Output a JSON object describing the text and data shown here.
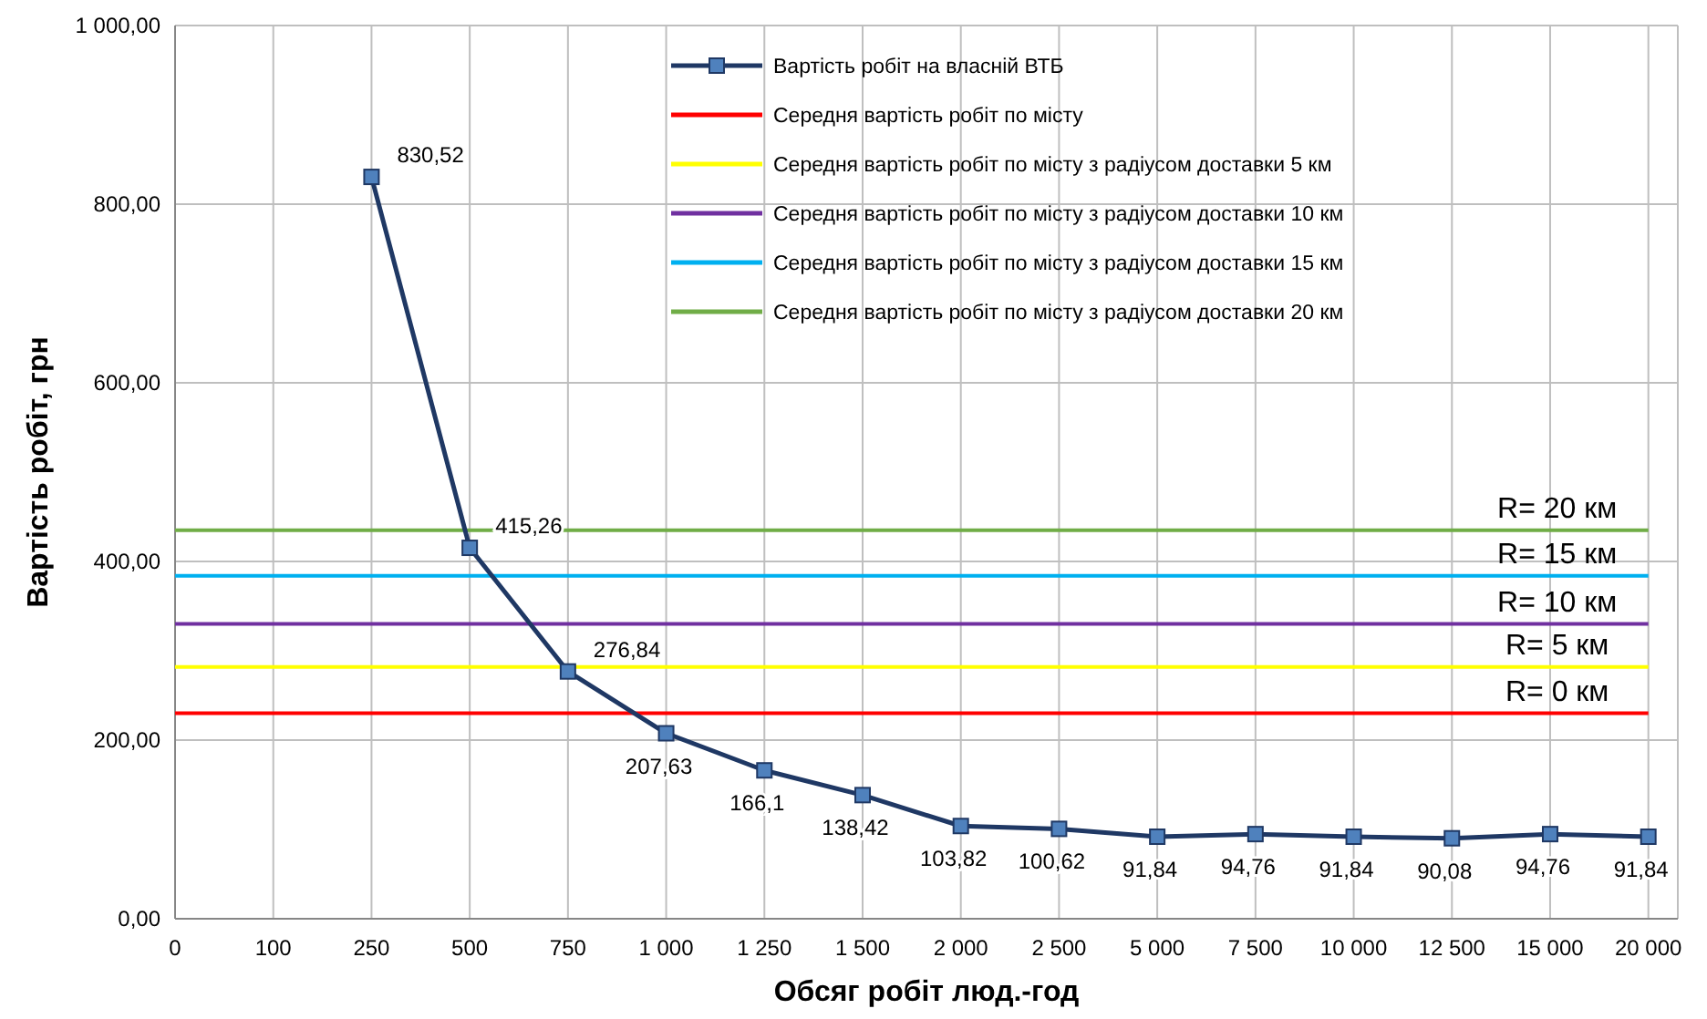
{
  "chart_data": {
    "type": "line",
    "xlabel": "Обсяг робіт люд.-год",
    "ylabel": "Вартість робіт, грн",
    "categories": [
      "0",
      "100",
      "250",
      "500",
      "750",
      "1 000",
      "1 250",
      "1 500",
      "2 000",
      "2 500",
      "5 000",
      "7 500",
      "10 000",
      "12 500",
      "15 000",
      "20 000"
    ],
    "ylim": [
      0,
      1000
    ],
    "yticks": [
      {
        "value": 0,
        "label": "0,00"
      },
      {
        "value": 200,
        "label": "200,00"
      },
      {
        "value": 400,
        "label": "400,00"
      },
      {
        "value": 600,
        "label": "600,00"
      },
      {
        "value": 800,
        "label": "800,00"
      },
      {
        "value": 1000,
        "label": "1 000,00"
      }
    ],
    "grid": true,
    "legend": "top right",
    "series": [
      {
        "name": "Вартість робіт на власній ВТБ",
        "color": "#1f3864",
        "marker": "square",
        "values": [
          null,
          null,
          830.52,
          415.26,
          276.84,
          207.63,
          166.1,
          138.42,
          103.82,
          100.62,
          91.84,
          94.76,
          91.84,
          90.08,
          94.76,
          91.84
        ],
        "value_labels": [
          null,
          null,
          "830,52",
          "415,26",
          "276,84",
          "207,63",
          "166,1",
          "138,42",
          "103,82",
          "100,62",
          "91,84",
          "94,76",
          "91,84",
          "90,08",
          "94,76",
          "91,84"
        ]
      },
      {
        "name": "Середня вартість робіт по місту",
        "color": "#ff0000",
        "marker": "none",
        "values": [
          230,
          230,
          230,
          230,
          230,
          230,
          230,
          230,
          230,
          230,
          230,
          230,
          230,
          230,
          230,
          230
        ]
      },
      {
        "name": "Середня вартість робіт по місту з радіусом доставки 5  км",
        "color": "#ffff00",
        "marker": "none",
        "values": [
          282,
          282,
          282,
          282,
          282,
          282,
          282,
          282,
          282,
          282,
          282,
          282,
          282,
          282,
          282,
          282
        ]
      },
      {
        "name": "Середня вартість робіт по місту з радіусом доставки 10  км",
        "color": "#7030a0",
        "marker": "none",
        "values": [
          330,
          330,
          330,
          330,
          330,
          330,
          330,
          330,
          330,
          330,
          330,
          330,
          330,
          330,
          330,
          330
        ]
      },
      {
        "name": "Середня вартість робіт по місту з радіусом доставки 15  км",
        "color": "#00b0f0",
        "marker": "none",
        "values": [
          384,
          384,
          384,
          384,
          384,
          384,
          384,
          384,
          384,
          384,
          384,
          384,
          384,
          384,
          384,
          384
        ]
      },
      {
        "name": "Середня вартість робіт по місту з радіусом доставки 20  км",
        "color": "#70ad47",
        "marker": "none",
        "values": [
          435,
          435,
          435,
          435,
          435,
          435,
          435,
          435,
          435,
          435,
          435,
          435,
          435,
          435,
          435,
          435
        ]
      }
    ],
    "annotations": [
      {
        "text": "R= 20 км",
        "x": "20 000",
        "y": 435
      },
      {
        "text": "R= 15 км",
        "x": "20 000",
        "y": 384
      },
      {
        "text": "R= 10 км",
        "x": "20 000",
        "y": 330
      },
      {
        "text": "R= 5 км",
        "x": "20 000",
        "y": 282
      },
      {
        "text": "R= 0 км",
        "x": "20 000",
        "y": 230
      }
    ]
  }
}
